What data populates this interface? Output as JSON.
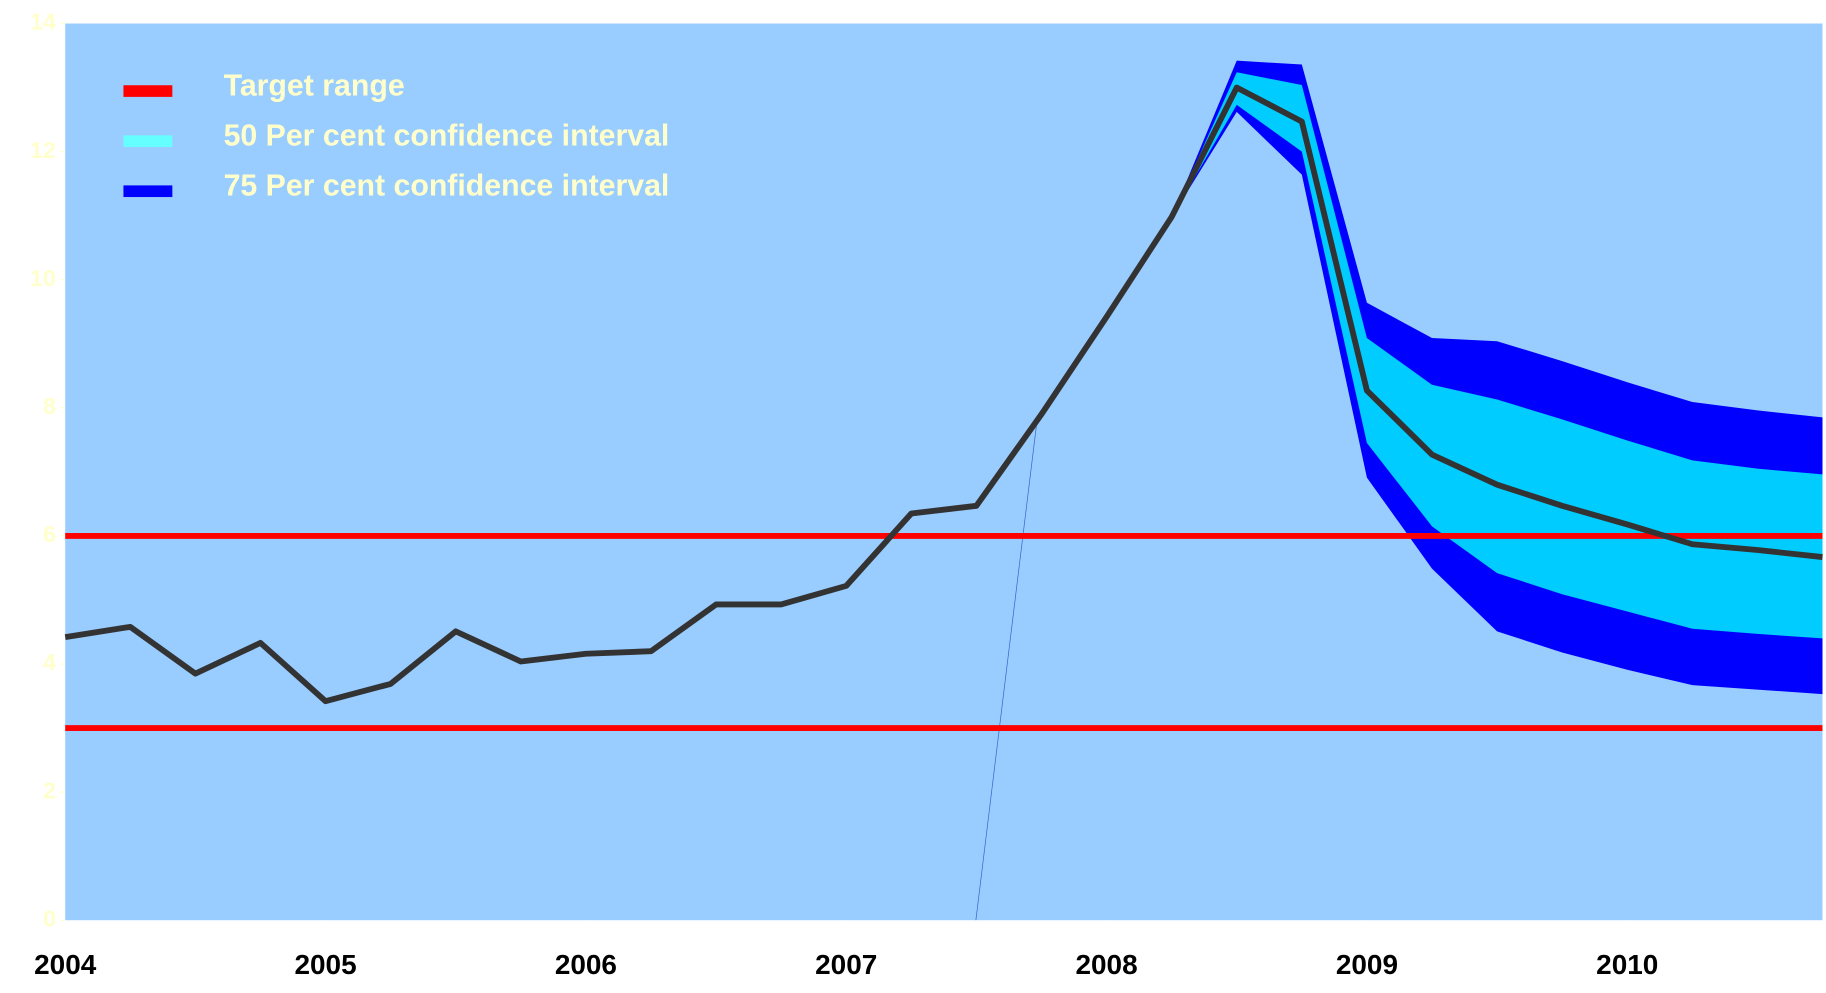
{
  "chart_data": {
    "type": "fan",
    "x": [
      2004,
      2004.25,
      2004.5,
      2004.75,
      2005,
      2005.25,
      2005.5,
      2005.75,
      2006,
      2006.25,
      2006.5,
      2006.75,
      2007,
      2007.25,
      2007.5,
      2007.75,
      2008,
      2008.25,
      2008.5,
      2008.75,
      2009,
      2009.25,
      2009.5,
      2009.75,
      2010,
      2010.25,
      2010.5,
      2010.75
    ],
    "line": {
      "color": "#333333",
      "values": [
        4.42,
        4.58,
        3.85,
        4.33,
        3.42,
        3.69,
        4.51,
        4.04,
        4.16,
        4.2,
        4.93,
        4.93,
        5.22,
        6.35,
        6.47,
        7.9,
        9.42,
        10.98,
        13.0,
        12.47,
        8.27,
        7.27,
        6.8,
        6.47,
        6.18,
        5.87,
        5.78,
        5.67
      ]
    },
    "target_range": {
      "name": "Target range",
      "color": "#ff0000",
      "values": [
        3,
        6
      ]
    },
    "bands": [
      {
        "name": "75 Per cent confidence interval",
        "color": "#0000ff",
        "legend_color": "#0000ff",
        "upper": [
          null,
          null,
          null,
          null,
          null,
          null,
          null,
          null,
          null,
          null,
          null,
          null,
          null,
          null,
          null,
          null,
          null,
          10.98,
          13.42,
          13.36,
          9.64,
          9.09,
          9.04,
          8.73,
          8.4,
          8.09,
          7.96,
          7.85
        ],
        "lower": [
          null,
          null,
          null,
          null,
          null,
          null,
          null,
          null,
          null,
          null,
          null,
          null,
          null,
          null,
          null,
          null,
          null,
          10.98,
          12.62,
          11.64,
          6.91,
          5.49,
          4.51,
          4.18,
          3.91,
          3.67,
          3.6,
          3.53
        ]
      },
      {
        "name": "50 Per cent confidence interval",
        "color": "#00ccff",
        "legend_color": "#66ffff",
        "upper": [
          null,
          null,
          null,
          null,
          null,
          null,
          null,
          null,
          null,
          null,
          null,
          null,
          null,
          null,
          null,
          null,
          null,
          10.98,
          13.24,
          13.04,
          9.09,
          8.36,
          8.13,
          7.82,
          7.49,
          7.18,
          7.05,
          6.96
        ],
        "lower": [
          null,
          null,
          null,
          null,
          null,
          null,
          null,
          null,
          null,
          null,
          null,
          null,
          null,
          null,
          null,
          null,
          null,
          10.98,
          12.73,
          12.0,
          7.45,
          6.15,
          5.42,
          5.09,
          4.82,
          4.55,
          4.47,
          4.4
        ]
      }
    ],
    "xlim": [
      2004,
      2010.75
    ],
    "xticks": [
      2004,
      2005,
      2006,
      2007,
      2008,
      2009,
      2010
    ],
    "ylim": [
      0,
      14
    ],
    "yticks": [
      0,
      2,
      4,
      6,
      8,
      10,
      12,
      14
    ],
    "legend": "upper left"
  }
}
